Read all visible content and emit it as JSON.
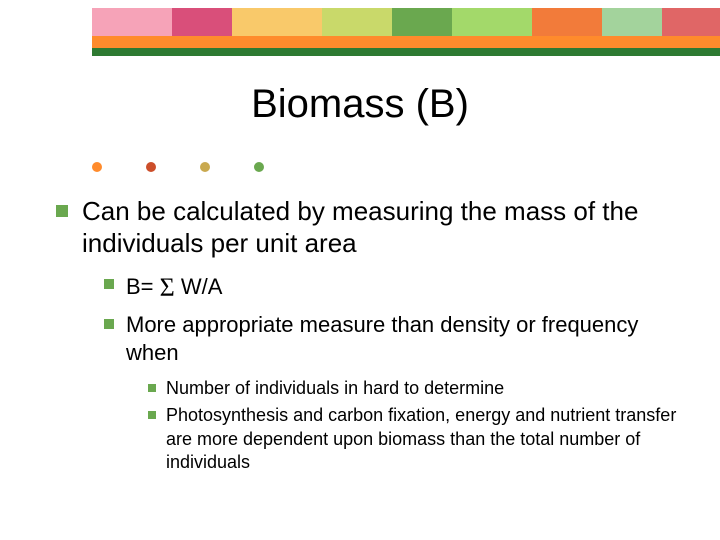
{
  "colors": {
    "banner_segments": [
      "#f6a3b8",
      "#d94f7a",
      "#f9c96a",
      "#c9d96a",
      "#6aa84f",
      "#a3d96a",
      "#f27b3a",
      "#a3d39c",
      "#e06666"
    ],
    "orange_bar": "#ff8b2c",
    "green_bar": "#2e7a32",
    "dots": [
      "#ff8b2c",
      "#cc4e2a",
      "#c9a94f",
      "#6aa84f"
    ],
    "bullet_lvl1": "#6aa84f",
    "bullet_lvl2": "#6aa84f",
    "bullet_lvl3": "#6aa84f"
  },
  "title": "Biomass (B)",
  "body": {
    "lvl1": "Can be calculated by measuring the mass of the individuals per unit area",
    "lvl2a_prefix": "B= ",
    "lvl2a_sigma": "Σ",
    "lvl2a_suffix": " W/A",
    "lvl2b": "More appropriate measure than density or frequency when",
    "lvl3a": "Number of individuals in hard to determine",
    "lvl3b": "Photosynthesis and carbon fixation, energy and nutrient transfer are more dependent upon biomass than the total number of individuals"
  }
}
